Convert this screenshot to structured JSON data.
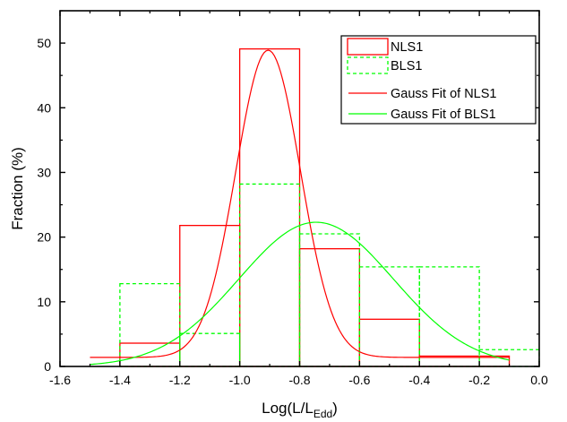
{
  "chart_data": {
    "type": "histogram",
    "title": "",
    "xlabel": "Log(L/L",
    "xlabel_sub": "Edd",
    "xlabel_close": ")",
    "ylabel": "Fraction (%)",
    "xlim": [
      -1.6,
      0.0
    ],
    "ylim": [
      0,
      55
    ],
    "x_ticks": [
      -1.6,
      -1.4,
      -1.2,
      -1.0,
      -0.8,
      -0.6,
      -0.4,
      -0.2,
      0.0
    ],
    "x_tick_labels": [
      "-1.6",
      "-1.4",
      "-1.2",
      "-1.0",
      "-0.8",
      "-0.6",
      "-0.4",
      "-0.2",
      "0.0"
    ],
    "y_ticks": [
      0,
      10,
      20,
      30,
      40,
      50
    ],
    "y_tick_labels": [
      "0",
      "10",
      "20",
      "30",
      "40",
      "50"
    ],
    "grid": false,
    "legend_position": "top-right",
    "series": [
      {
        "name": "NLS1",
        "kind": "histogram",
        "color": "#ff0000",
        "line_style": "solid",
        "bins": [
          {
            "x0": -1.4,
            "x1": -1.2,
            "value": 3.6
          },
          {
            "x0": -1.2,
            "x1": -1.0,
            "value": 21.8
          },
          {
            "x0": -1.0,
            "x1": -0.8,
            "value": 49.1
          },
          {
            "x0": -0.8,
            "x1": -0.6,
            "value": 18.2
          },
          {
            "x0": -0.6,
            "x1": -0.4,
            "value": 7.3
          },
          {
            "x0": -0.4,
            "x1": -0.1,
            "value": 1.6
          }
        ]
      },
      {
        "name": "BLS1",
        "kind": "histogram",
        "color": "#00ff00",
        "line_style": "dashed",
        "bins": [
          {
            "x0": -1.4,
            "x1": -1.2,
            "value": 12.8
          },
          {
            "x0": -1.2,
            "x1": -1.0,
            "value": 5.1
          },
          {
            "x0": -1.0,
            "x1": -0.8,
            "value": 28.2
          },
          {
            "x0": -0.8,
            "x1": -0.6,
            "value": 20.5
          },
          {
            "x0": -0.6,
            "x1": -0.4,
            "value": 15.4
          },
          {
            "x0": -0.4,
            "x1": -0.2,
            "value": 15.4
          },
          {
            "x0": -0.2,
            "x1": 0.0,
            "value": 2.6
          }
        ]
      },
      {
        "name": "Gauss Fit of NLS1",
        "kind": "gaussian",
        "color": "#ff0000",
        "line_style": "solid",
        "x_range": [
          -1.5,
          -0.1
        ],
        "baseline": 1.4,
        "peak": 47.5,
        "center": -0.905,
        "sigma": 0.108
      },
      {
        "name": "Gauss Fit of BLS1",
        "kind": "gaussian",
        "color": "#00ff00",
        "line_style": "solid",
        "x_range": [
          -1.5,
          -0.1
        ],
        "baseline": 0,
        "peak": 22.3,
        "center": -0.745,
        "sigma": 0.258
      }
    ]
  }
}
